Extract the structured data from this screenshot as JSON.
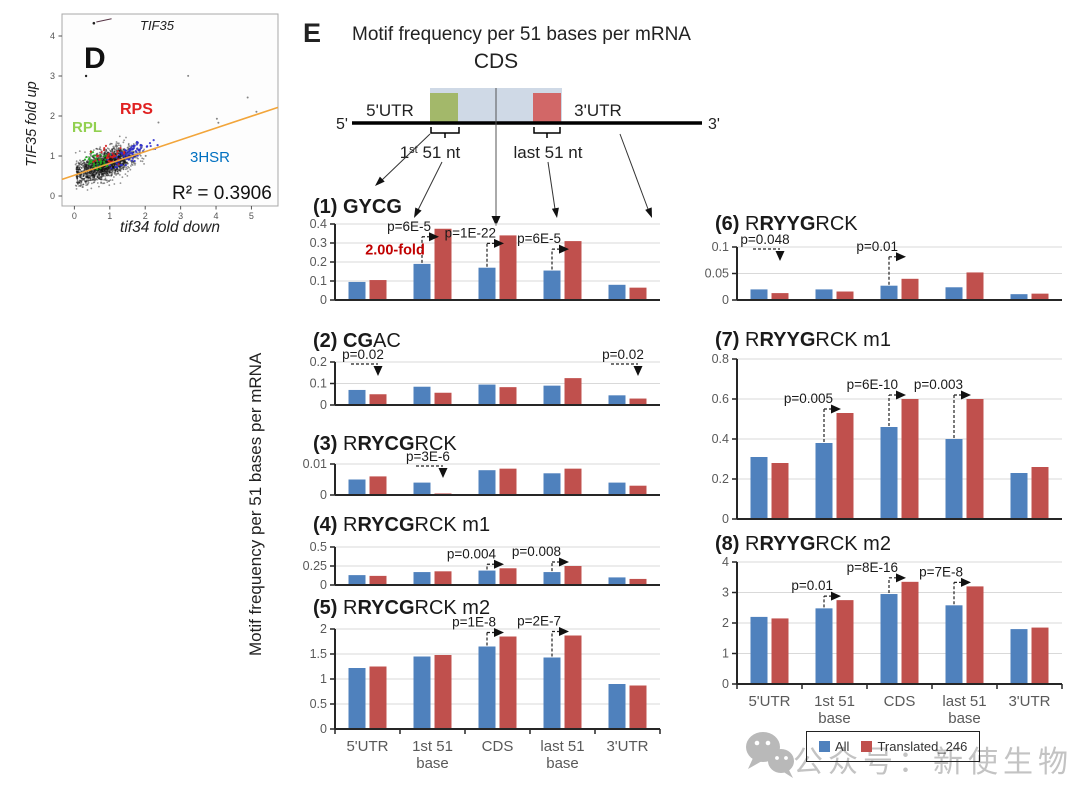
{
  "panel_d": {
    "label": "D",
    "outlier_label": "TIF35",
    "x_axis_label": "tif34 fold down",
    "y_axis_label": "TIF35 fold up",
    "r_squared_text": "R² = 0.3906",
    "group_labels": [
      {
        "text": "RPL",
        "color": "#92d050"
      },
      {
        "text": "RPS",
        "color": "#e02020"
      },
      {
        "text": "3HSR",
        "color": "#0070c0"
      }
    ],
    "x_ticks": [
      "0",
      "1",
      "2",
      "3",
      "4",
      "5"
    ],
    "y_ticks": [
      "0",
      "1",
      "2",
      "3",
      "4"
    ],
    "trend_color": "#f2a53a"
  },
  "panel_e": {
    "label": "E",
    "title": "Motif frequency per 51 bases per mRNA",
    "y_axis_label": "Motif frequency per 51 bases per mRNA",
    "schematic": {
      "cds": "CDS",
      "utr5": "5'UTR",
      "utr3": "3'UTR",
      "five_prime": "5'",
      "three_prime": "3'",
      "first51_base": "1",
      "first51_sup": "st",
      "first51_rest": " 51 nt",
      "last51": "last 51 nt"
    }
  },
  "legend": {
    "items": [
      {
        "label": "All",
        "color": "#4F81BD"
      },
      {
        "label": "Translated_246",
        "color": "#C0504D"
      }
    ]
  },
  "watermark": {
    "text": "公众号：新使生物"
  },
  "colors": {
    "all": "#4F81BD",
    "translated": "#C0504D",
    "grid": "#d9d9d9",
    "axis": "#262626",
    "tick_text": "#595959"
  },
  "chart_data": [
    {
      "id": "D",
      "type": "scatter",
      "xlabel": "tif34 fold down",
      "ylabel": "TIF35 fold up",
      "xlim": [
        0,
        5
      ],
      "ylim": [
        0,
        4
      ],
      "r_squared": 0.3906,
      "groups": [
        "all mRNAs",
        "RPL",
        "RPS",
        "3HSR"
      ],
      "annotation": "TIF35"
    },
    {
      "id": 1,
      "type": "bar",
      "title": {
        "num": "(1)",
        "pre": "",
        "bold": "GYCG",
        "post": ""
      },
      "categories": [
        "5'UTR",
        "1st 51 base",
        "CDS",
        "last 51 base",
        "3'UTR"
      ],
      "series": [
        {
          "name": "All",
          "values": [
            0.095,
            0.19,
            0.17,
            0.155,
            0.08
          ]
        },
        {
          "name": "Translated_246",
          "values": [
            0.105,
            0.375,
            0.34,
            0.31,
            0.065
          ]
        }
      ],
      "ylim": [
        0,
        0.4
      ],
      "yticks": [
        0,
        0.1,
        0.2,
        0.3,
        0.4
      ],
      "annotations": [
        {
          "cat": "1st 51 base",
          "text": "p=6E-5",
          "dir": "right"
        },
        {
          "cat": "CDS",
          "text": "p=1E-22",
          "dir": "right"
        },
        {
          "cat": "last 51 base",
          "text": "p=6E-5",
          "dir": "right"
        }
      ],
      "extra_label": {
        "text": "2.00-fold",
        "color": "#C00000"
      }
    },
    {
      "id": 2,
      "type": "bar",
      "title": {
        "num": "(2)",
        "pre": "",
        "bold": "CG",
        "post": "AC"
      },
      "categories": [
        "5'UTR",
        "1st 51 base",
        "CDS",
        "last 51 base",
        "3'UTR"
      ],
      "series": [
        {
          "name": "All",
          "values": [
            0.07,
            0.085,
            0.095,
            0.09,
            0.045
          ]
        },
        {
          "name": "Translated_246",
          "values": [
            0.05,
            0.057,
            0.083,
            0.125,
            0.03
          ]
        }
      ],
      "ylim": [
        0,
        0.2
      ],
      "yticks": [
        0,
        0.1,
        0.2
      ],
      "annotations": [
        {
          "cat": "5'UTR",
          "text": "p=0.02",
          "dir": "down"
        },
        {
          "cat": "3'UTR",
          "text": "p=0.02",
          "dir": "down"
        }
      ]
    },
    {
      "id": 3,
      "type": "bar",
      "title": {
        "num": "(3)",
        "pre": "R",
        "bold": "RYCG",
        "post": "RCK"
      },
      "categories": [
        "5'UTR",
        "1st 51 base",
        "CDS",
        "last 51 base",
        "3'UTR"
      ],
      "series": [
        {
          "name": "All",
          "values": [
            0.005,
            0.004,
            0.008,
            0.007,
            0.004
          ]
        },
        {
          "name": "Translated_246",
          "values": [
            0.006,
            0.0005,
            0.0085,
            0.0085,
            0.003
          ]
        }
      ],
      "ylim": [
        0,
        0.01
      ],
      "yticks": [
        0,
        0.01
      ],
      "annotations": [
        {
          "cat": "1st 51 base",
          "text": "p=3E-6",
          "dir": "down"
        }
      ]
    },
    {
      "id": 4,
      "type": "bar",
      "title": {
        "num": "(4)",
        "pre": "R",
        "bold": "RYCG",
        "post": "RCK m1"
      },
      "categories": [
        "5'UTR",
        "1st 51 base",
        "CDS",
        "last 51 base",
        "3'UTR"
      ],
      "series": [
        {
          "name": "All",
          "values": [
            0.13,
            0.17,
            0.19,
            0.17,
            0.1
          ]
        },
        {
          "name": "Translated_246",
          "values": [
            0.12,
            0.18,
            0.22,
            0.25,
            0.08
          ]
        }
      ],
      "ylim": [
        0,
        0.5
      ],
      "yticks": [
        0,
        0.25,
        0.5
      ],
      "annotations": [
        {
          "cat": "CDS",
          "text": "p=0.004",
          "dir": "right"
        },
        {
          "cat": "last 51 base",
          "text": "p=0.008",
          "dir": "right"
        }
      ]
    },
    {
      "id": 5,
      "type": "bar",
      "title": {
        "num": "(5)",
        "pre": "R",
        "bold": "RYCG",
        "post": "RCK m2"
      },
      "categories": [
        "5'UTR",
        "1st 51 base",
        "CDS",
        "last 51 base",
        "3'UTR"
      ],
      "series": [
        {
          "name": "All",
          "values": [
            1.22,
            1.45,
            1.65,
            1.43,
            0.9
          ]
        },
        {
          "name": "Translated_246",
          "values": [
            1.25,
            1.48,
            1.85,
            1.87,
            0.87
          ]
        }
      ],
      "ylim": [
        0,
        2
      ],
      "yticks": [
        0,
        0.5,
        1,
        1.5,
        2
      ],
      "annotations": [
        {
          "cat": "CDS",
          "text": "p=1E-8",
          "dir": "right"
        },
        {
          "cat": "last 51 base",
          "text": "p=2E-7",
          "dir": "right"
        }
      ]
    },
    {
      "id": 6,
      "type": "bar",
      "title": {
        "num": "(6)",
        "pre": "R",
        "bold": "RYYG",
        "post": "RCK"
      },
      "categories": [
        "5'UTR",
        "1st 51 base",
        "CDS",
        "last 51 base",
        "3'UTR"
      ],
      "series": [
        {
          "name": "All",
          "values": [
            0.02,
            0.02,
            0.027,
            0.024,
            0.011
          ]
        },
        {
          "name": "Translated_246",
          "values": [
            0.013,
            0.016,
            0.04,
            0.052,
            0.012
          ]
        }
      ],
      "ylim": [
        0,
        0.1
      ],
      "yticks": [
        0,
        0.05,
        0.1
      ],
      "annotations": [
        {
          "cat": "5'UTR",
          "text": "p=0.048",
          "dir": "down"
        },
        {
          "cat": "CDS",
          "text": "p=0.01",
          "dir": "right"
        }
      ]
    },
    {
      "id": 7,
      "type": "bar",
      "title": {
        "num": "(7)",
        "pre": "R",
        "bold": "RYYG",
        "post": "RCK m1"
      },
      "categories": [
        "5'UTR",
        "1st 51 base",
        "CDS",
        "last 51 base",
        "3'UTR"
      ],
      "series": [
        {
          "name": "All",
          "values": [
            0.31,
            0.38,
            0.46,
            0.4,
            0.23
          ]
        },
        {
          "name": "Translated_246",
          "values": [
            0.28,
            0.53,
            0.6,
            0.6,
            0.26
          ]
        }
      ],
      "ylim": [
        0,
        0.8
      ],
      "yticks": [
        0,
        0.2,
        0.4,
        0.6,
        0.8
      ],
      "annotations": [
        {
          "cat": "1st 51 base",
          "text": "p=0.005",
          "dir": "right"
        },
        {
          "cat": "CDS",
          "text": "p=6E-10",
          "dir": "right"
        },
        {
          "cat": "last 51 base",
          "text": "p=0.003",
          "dir": "right"
        }
      ]
    },
    {
      "id": 8,
      "type": "bar",
      "title": {
        "num": "(8)",
        "pre": "R",
        "bold": "RYYG",
        "post": "RCK m2"
      },
      "categories": [
        "5'UTR",
        "1st 51 base",
        "CDS",
        "last 51 base",
        "3'UTR"
      ],
      "series": [
        {
          "name": "All",
          "values": [
            2.2,
            2.48,
            2.95,
            2.58,
            1.8
          ]
        },
        {
          "name": "Translated_246",
          "values": [
            2.15,
            2.75,
            3.35,
            3.2,
            1.85
          ]
        }
      ],
      "ylim": [
        0,
        4
      ],
      "yticks": [
        0,
        1,
        2,
        3,
        4
      ],
      "annotations": [
        {
          "cat": "1st 51 base",
          "text": "p=0.01",
          "dir": "right"
        },
        {
          "cat": "CDS",
          "text": "p=8E-16",
          "dir": "right"
        },
        {
          "cat": "last 51 base",
          "text": "p=7E-8",
          "dir": "right"
        }
      ]
    }
  ]
}
